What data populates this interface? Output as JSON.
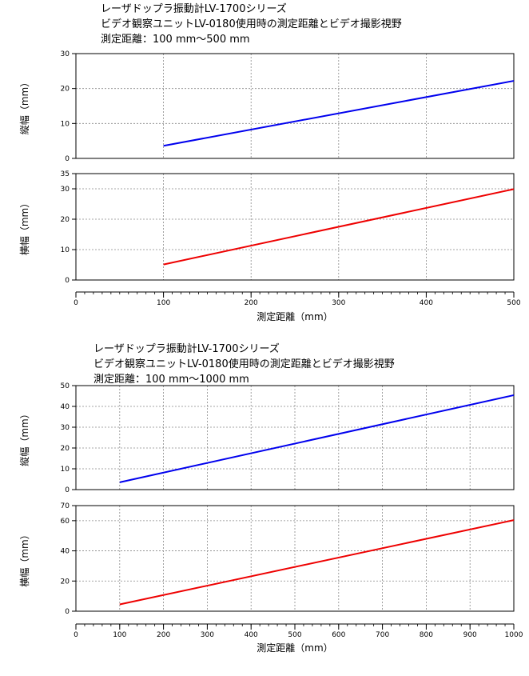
{
  "chart_data": [
    {
      "id": "range-500",
      "type": "line",
      "title": [
        "レーザドップラ振動計LV-1700シリーズ",
        "ビデオ観察ユニットLV-0180使用時の測定距離とビデオ撮影視野",
        "測定距離：100 mm〜500 mm"
      ],
      "xlabel": "測定距離（mm）",
      "xlim": [
        0,
        500
      ],
      "x_ticks": [
        0,
        100,
        200,
        300,
        400,
        500
      ],
      "x_minor_step": 10,
      "grid": true,
      "panels": [
        {
          "ylabel": "縦幅（mm）",
          "ylim": [
            0,
            30
          ],
          "y_ticks": [
            0,
            10,
            20,
            30
          ],
          "series": [
            {
              "color": "#0000ee",
              "points": [
                [
                  100,
                  3.6
                ],
                [
                  500,
                  22.2
                ]
              ]
            }
          ]
        },
        {
          "ylabel": "横幅（mm）",
          "ylim": [
            0,
            35
          ],
          "y_ticks": [
            0,
            10,
            20,
            30,
            35
          ],
          "series": [
            {
              "color": "#ee0000",
              "points": [
                [
                  100,
                  5.1
                ],
                [
                  500,
                  29.9
                ]
              ]
            }
          ]
        }
      ]
    },
    {
      "id": "range-1000",
      "type": "line",
      "title": [
        "レーザドップラ振動計LV-1700シリーズ",
        "ビデオ観察ユニットLV-0180使用時の測定距離とビデオ撮影視野",
        "測定距離：100 mm〜1000 mm"
      ],
      "xlabel": "測定距離（mm）",
      "xlim": [
        0,
        1000
      ],
      "x_ticks": [
        0,
        100,
        200,
        300,
        400,
        500,
        600,
        700,
        800,
        900,
        1000
      ],
      "x_minor_step": 20,
      "grid": true,
      "panels": [
        {
          "ylabel": "縦幅（mm）",
          "ylim": [
            0,
            50
          ],
          "y_ticks": [
            0,
            10,
            20,
            30,
            40,
            50
          ],
          "series": [
            {
              "color": "#0000ee",
              "points": [
                [
                  100,
                  3.5
                ],
                [
                  1000,
                  45.4
                ]
              ]
            }
          ]
        },
        {
          "ylabel": "横幅（mm）",
          "ylim": [
            0,
            70
          ],
          "y_ticks": [
            0,
            20,
            40,
            60,
            70
          ],
          "series": [
            {
              "color": "#ee0000",
              "points": [
                [
                  100,
                  4.5
                ],
                [
                  1000,
                  60.4
                ]
              ]
            }
          ]
        }
      ]
    }
  ]
}
